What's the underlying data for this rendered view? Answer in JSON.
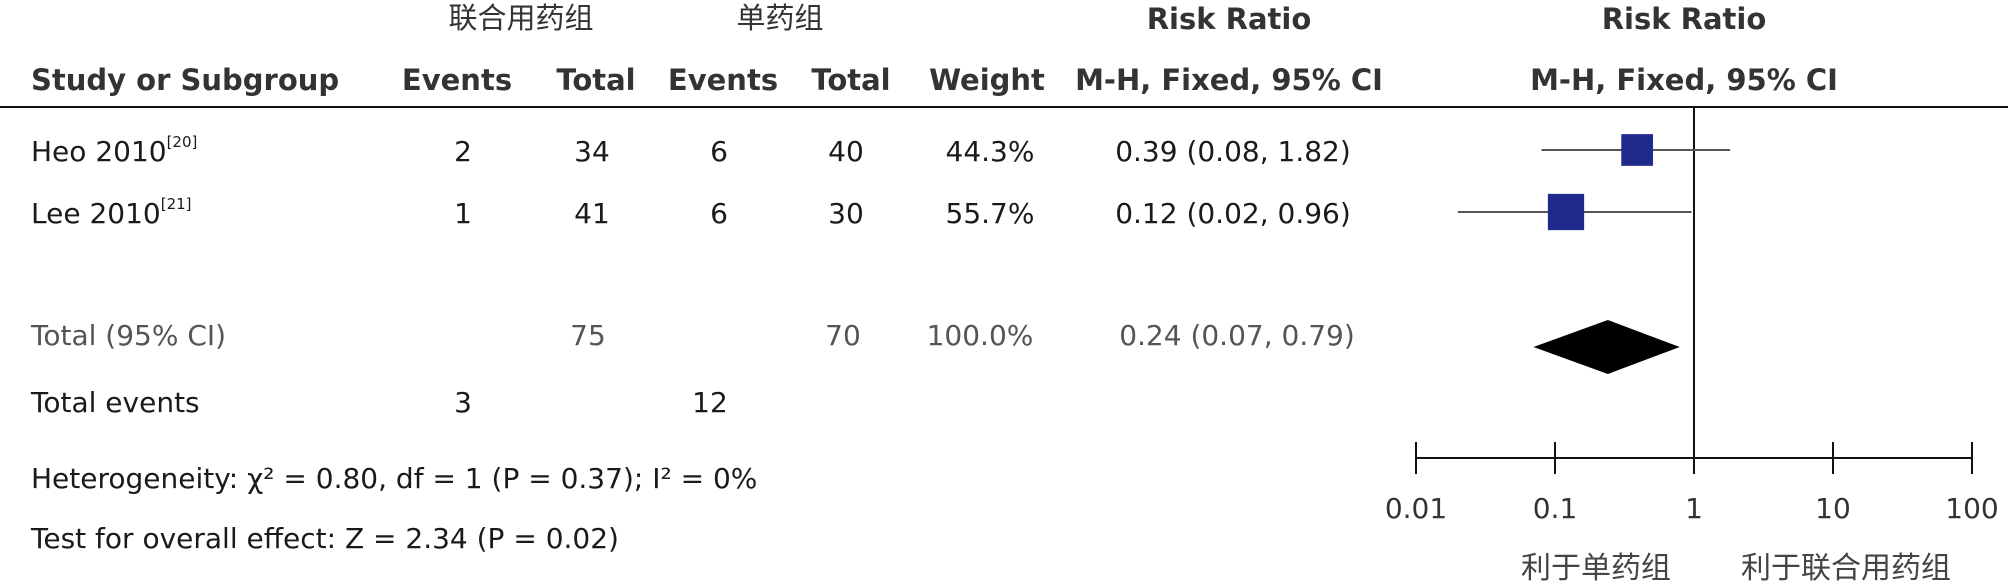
{
  "columns": {
    "group_combo": "联合用药组",
    "group_single": "单药组",
    "risk_ratio": "Risk Ratio",
    "risk_ratio_plot": "Risk Ratio",
    "study": "Study or Subgroup",
    "events1": "Events",
    "total1": "Total",
    "events2": "Events",
    "total2": "Total",
    "weight": "Weight",
    "method": "M-H, Fixed, 95% CI",
    "method_plot": "M-H, Fixed, 95% CI"
  },
  "rows": [
    {
      "study": "Heo 2010",
      "ref": "[20]",
      "events1": "2",
      "total1": "34",
      "events2": "6",
      "total2": "40",
      "weight": "44.3%",
      "rr_text": "0.39 (0.08, 1.82)"
    },
    {
      "study": "Lee 2010",
      "ref": "[21]",
      "events1": "1",
      "total1": "41",
      "events2": "6",
      "total2": "30",
      "weight": "55.7%",
      "rr_text": "0.12 (0.02, 0.96)"
    }
  ],
  "total": {
    "label": "Total (95% CI)",
    "total1": "75",
    "total2": "70",
    "weight": "100.0%",
    "rr_text": "0.24 (0.07, 0.79)"
  },
  "total_events": {
    "label": "Total events",
    "events1": "3",
    "events2": "12"
  },
  "heterogeneity": "Heterogeneity: χ² = 0.80, df = 1 (P = 0.37); I² = 0%",
  "overall_effect": "Test for overall effect: Z = 2.34 (P = 0.02)",
  "axis_labels": {
    "left": "利于单药组",
    "right": "利于联合用药组"
  },
  "colors": {
    "study_marker": "#1f2a8c",
    "pooled_diamond": "#000000",
    "ci_line": "#555555"
  },
  "chart_data": {
    "type": "scatter",
    "title": "Risk Ratio",
    "subtitle": "M-H, Fixed, 95% CI",
    "x_scale": "log",
    "xlim": [
      0.01,
      100
    ],
    "x_ticks": [
      0.01,
      0.1,
      1,
      10,
      100
    ],
    "x_tick_labels": [
      "0.01",
      "0.1",
      "1",
      "10",
      "100"
    ],
    "reference_line": 1,
    "studies": [
      {
        "name": "Heo 2010",
        "rr": 0.39,
        "ci_low": 0.08,
        "ci_high": 1.82,
        "weight": 44.3
      },
      {
        "name": "Lee 2010",
        "rr": 0.12,
        "ci_low": 0.02,
        "ci_high": 0.96,
        "weight": 55.7
      }
    ],
    "pooled": {
      "name": "Total (95% CI)",
      "rr": 0.24,
      "ci_low": 0.07,
      "ci_high": 0.79
    }
  }
}
